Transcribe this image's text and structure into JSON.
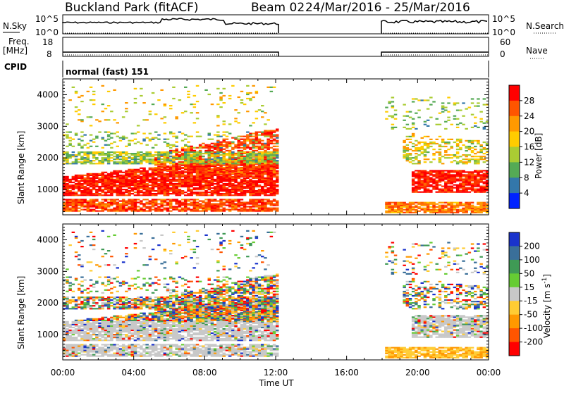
{
  "header": {
    "station": "Buckland Park (fitACF)",
    "beam": "Beam 02",
    "date_range": "24/Mar/2016 - 25/Mar/2016"
  },
  "top_panels": {
    "nsky_label": "N.Sky",
    "nsky_ticks": [
      "10^5",
      "10^0"
    ],
    "nsearch_label": "N.Search",
    "nsearch_ticks": [
      "10^5",
      "10^0"
    ],
    "freq_label_1": "Freq.",
    "freq_label_2": "[MHz]",
    "freq_ticks": [
      "18",
      "8"
    ],
    "nave_label": "Nave",
    "nave_ticks": [
      "60",
      "0"
    ],
    "cpid_label": "CPID",
    "cpid_value": "normal (fast) 151"
  },
  "chart_data": [
    {
      "type": "heatmap",
      "name": "power-panel",
      "ylabel": "Slant Range [km]",
      "xlabel": "",
      "ylim": [
        200,
        4500
      ],
      "yticks": [
        "1000",
        "2000",
        "3000",
        "4000"
      ],
      "colorbar_label": "Power [dB]",
      "colorbar_ticks": [
        "28",
        "24",
        "20",
        "16",
        "12",
        "8",
        "4"
      ],
      "colorbar_colors": [
        "#ff0000",
        "#ff5500",
        "#ff9900",
        "#ffcc00",
        "#aacc33",
        "#55aa55",
        "#3377aa",
        "#0022ff"
      ],
      "data_gap_utc_hours": [
        12,
        18
      ]
    },
    {
      "type": "heatmap",
      "name": "velocity-panel",
      "ylabel": "Slant Range [km]",
      "xlabel": "Time UT",
      "ylim": [
        200,
        4500
      ],
      "yticks": [
        "1000",
        "2000",
        "3000",
        "4000"
      ],
      "xticks": [
        "00:00",
        "04:00",
        "08:00",
        "12:00",
        "16:00",
        "20:00",
        "00:00"
      ],
      "colorbar_label": "Velocity [m s^-1]",
      "colorbar_ticks": [
        "200",
        "100",
        "50",
        "15",
        "-15",
        "-50",
        "-100",
        "-200"
      ],
      "colorbar_colors": [
        "#1a33cc",
        "#3a6f99",
        "#3f9a55",
        "#66cc33",
        "#c8c8c8",
        "#ffcc33",
        "#ff9900",
        "#ff5500",
        "#ff0000"
      ],
      "data_gap_utc_hours": [
        12,
        18
      ]
    }
  ]
}
